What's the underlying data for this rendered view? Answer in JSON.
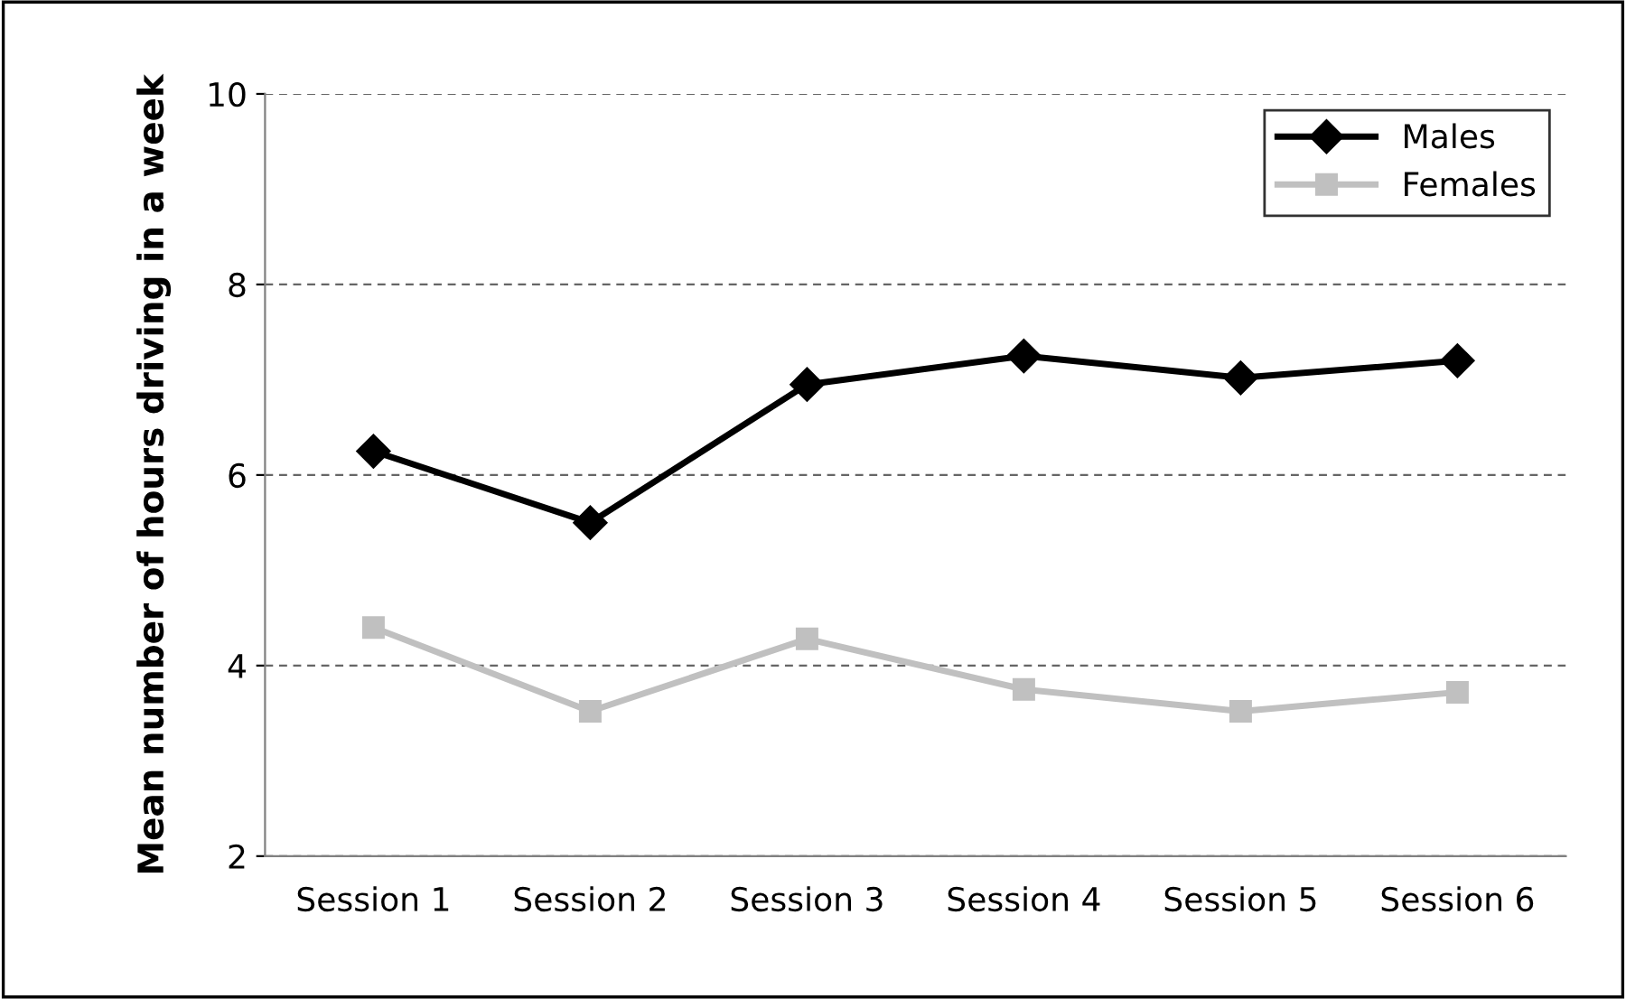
{
  "chart_data": {
    "type": "line",
    "ylabel": "Mean number of hours driving in a week",
    "categories": [
      "Session 1",
      "Session 2",
      "Session 3",
      "Session 4",
      "Session 5",
      "Session 6"
    ],
    "series": [
      {
        "name": "Males",
        "color": "#000000",
        "marker": "diamond",
        "values": [
          6.25,
          5.5,
          6.95,
          7.25,
          7.02,
          7.2
        ]
      },
      {
        "name": "Females",
        "color": "#c0c0c0",
        "marker": "square",
        "values": [
          4.4,
          3.52,
          4.28,
          3.75,
          3.52,
          3.72
        ]
      }
    ],
    "ylim": [
      2,
      10
    ],
    "yticks": [
      2,
      4,
      6,
      8,
      10
    ],
    "grid": "y",
    "legend": "top right"
  }
}
